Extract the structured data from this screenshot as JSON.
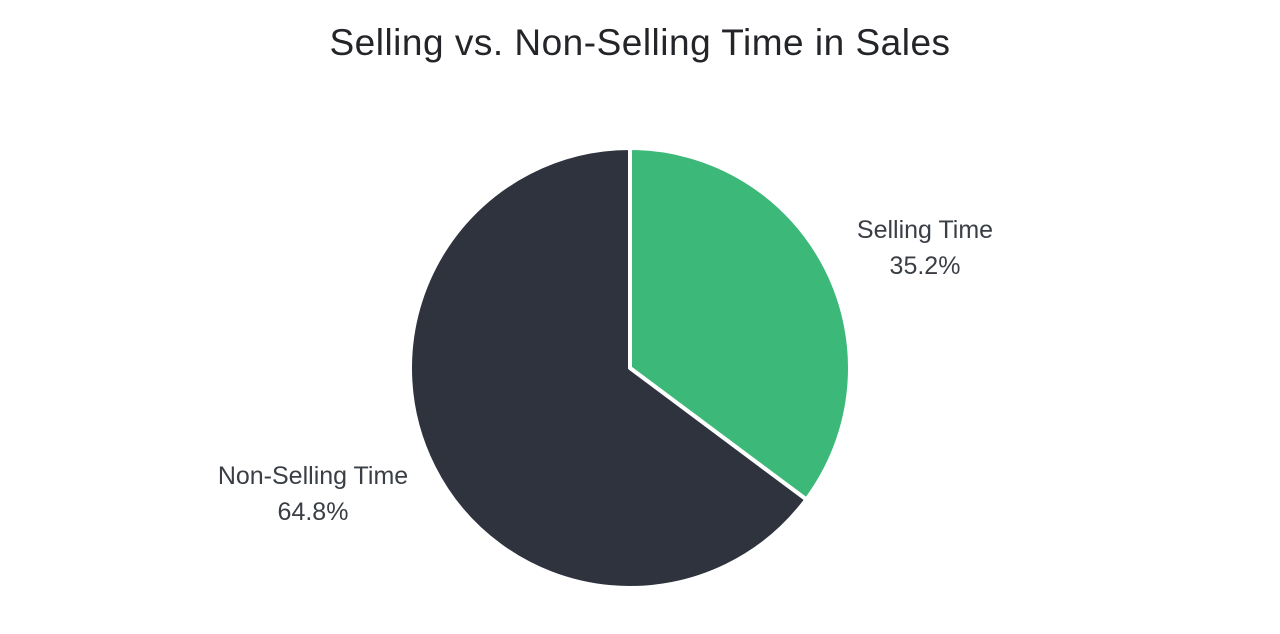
{
  "chart_data": {
    "type": "pie",
    "title": "Selling vs. Non-Selling Time in Sales",
    "start_angle_deg": 0,
    "direction": "clockwise",
    "labels_position": "outside",
    "legend": "none",
    "background": "#ffffff",
    "divider_color": "#ffffff",
    "divider_width": 4,
    "radius_px": 220,
    "slices": [
      {
        "label": "Selling Time",
        "value": 35.2,
        "pct_label": "35.2%",
        "color": "#3cb878"
      },
      {
        "label": "Non-Selling Time",
        "value": 64.8,
        "pct_label": "64.8%",
        "color": "#2e333e"
      }
    ]
  }
}
